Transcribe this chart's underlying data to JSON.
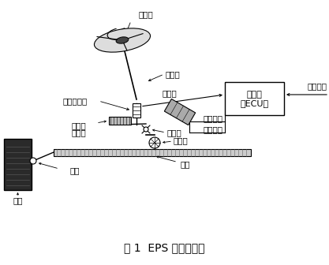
{
  "title": "图 1  EPS 系统原理图",
  "title_fontsize": 10,
  "bg_color": "#ffffff",
  "labels": {
    "steering_wheel": "方向盘",
    "input_shaft": "输入轴",
    "torque_sensor": "转矩传感器",
    "motor": "电动机",
    "controller_line1": "控制器",
    "controller_line2": "（ECU）",
    "vehicle_speed": "车速信号",
    "control_current": "控制电流",
    "switch_current": "开关电流",
    "reducer": "减速器",
    "output_shaft": "输出轴",
    "clutch": "离合器",
    "pinion": "小齿轮",
    "rack": "齿条",
    "tie_rod": "拉杆",
    "tire": "轮胎"
  },
  "text_color": "#000000",
  "line_color": "#000000"
}
